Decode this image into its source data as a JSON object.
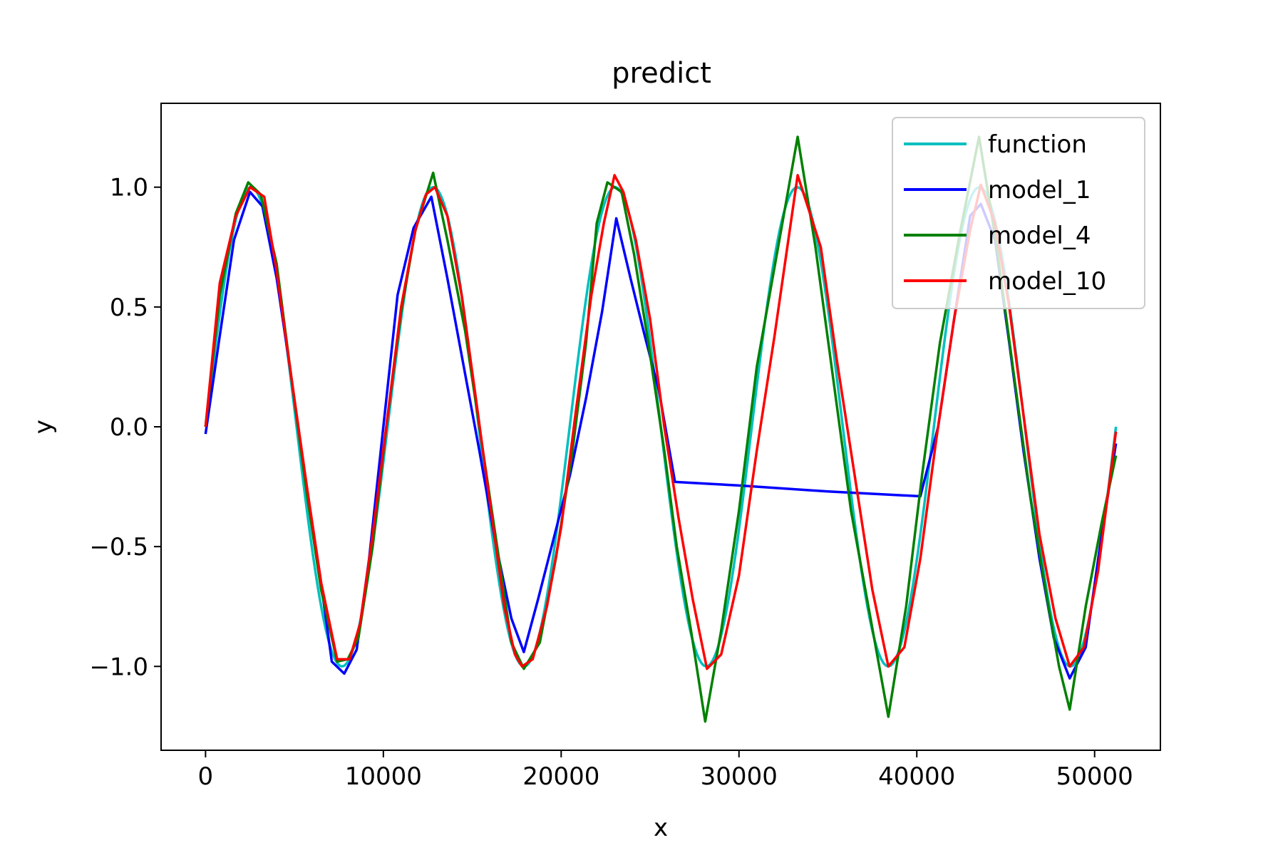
{
  "chart_data": {
    "type": "line",
    "title": "predict",
    "xlabel": "x",
    "ylabel": "y",
    "xlim": [
      -2500,
      53700
    ],
    "ylim": [
      -1.35,
      1.35
    ],
    "xticks": [
      0,
      10000,
      20000,
      30000,
      40000,
      50000
    ],
    "xtick_labels": [
      "0",
      "10000",
      "20000",
      "30000",
      "40000",
      "50000"
    ],
    "yticks": [
      1.0,
      0.5,
      0.0,
      -0.5,
      -1.0
    ],
    "ytick_labels": [
      "1.0",
      "0.5",
      "0.0",
      "−0.5",
      "−1.0"
    ],
    "grid": false,
    "legend_position": "top-right",
    "series": [
      {
        "name": "function",
        "color": "#00bfbf",
        "period": 10240,
        "x_range": [
          0,
          51200
        ],
        "note_type": "sine"
      },
      {
        "name": "model_1",
        "color": "#0000ff",
        "x": [
          0,
          800,
          1600,
          2500,
          3200,
          4000,
          4800,
          5600,
          6400,
          7100,
          7800,
          8500,
          9200,
          10000,
          10800,
          11700,
          12700,
          13600,
          14500,
          15400,
          16300,
          17200,
          17900,
          18700,
          19600,
          20500,
          21400,
          22300,
          23100,
          23900,
          24700,
          25500,
          26400,
          30000,
          35000,
          40200,
          41200,
          42100,
          43000,
          43600,
          44400,
          45200,
          46000,
          46900,
          47700,
          48600,
          49500,
          50300,
          51200
        ],
        "y": [
          -0.03,
          0.38,
          0.78,
          0.98,
          0.92,
          0.62,
          0.22,
          -0.22,
          -0.6,
          -0.98,
          -1.03,
          -0.93,
          -0.55,
          0.0,
          0.55,
          0.83,
          0.96,
          0.62,
          0.26,
          -0.1,
          -0.48,
          -0.8,
          -0.94,
          -0.72,
          -0.46,
          -0.2,
          0.12,
          0.48,
          0.87,
          0.62,
          0.38,
          0.15,
          -0.23,
          -0.245,
          -0.27,
          -0.29,
          0.0,
          0.45,
          0.88,
          0.93,
          0.78,
          0.35,
          -0.1,
          -0.55,
          -0.88,
          -1.05,
          -0.92,
          -0.5,
          -0.07
        ]
      },
      {
        "name": "model_4",
        "color": "#008000",
        "x": [
          0,
          800,
          1700,
          2400,
          3100,
          4000,
          4800,
          5700,
          6500,
          7400,
          8000,
          8600,
          9400,
          10200,
          11000,
          11800,
          12800,
          13600,
          14600,
          15500,
          16400,
          17200,
          17900,
          18800,
          19700,
          20600,
          21400,
          22000,
          22600,
          23400,
          24100,
          24900,
          25800,
          26500,
          27300,
          28100,
          29000,
          30000,
          31000,
          32200,
          33300,
          34300,
          35300,
          36300,
          37400,
          38400,
          39400,
          40300,
          41300,
          42400,
          43500,
          44500,
          45400,
          46400,
          47400,
          48000,
          48600,
          49500,
          50400,
          51200
        ],
        "y": [
          0.0,
          0.55,
          0.89,
          1.02,
          0.97,
          0.68,
          0.22,
          -0.28,
          -0.68,
          -0.98,
          -0.97,
          -0.88,
          -0.5,
          0.02,
          0.48,
          0.82,
          1.06,
          0.78,
          0.4,
          -0.05,
          -0.5,
          -0.9,
          -1.01,
          -0.9,
          -0.55,
          -0.12,
          0.35,
          0.85,
          1.02,
          0.98,
          0.72,
          0.35,
          -0.1,
          -0.5,
          -0.85,
          -1.23,
          -0.85,
          -0.35,
          0.25,
          0.75,
          1.21,
          0.75,
          0.2,
          -0.35,
          -0.8,
          -1.21,
          -0.75,
          -0.2,
          0.35,
          0.8,
          1.21,
          0.75,
          0.25,
          -0.3,
          -0.75,
          -1.0,
          -1.18,
          -0.75,
          -0.4,
          -0.12
        ]
      },
      {
        "name": "model_10",
        "color": "#ff0000",
        "x": [
          0,
          800,
          1700,
          2500,
          3300,
          4000,
          4800,
          5700,
          6500,
          7400,
          8100,
          8700,
          9400,
          10200,
          11000,
          11800,
          12400,
          12900,
          13600,
          14400,
          15200,
          16000,
          16800,
          17400,
          17800,
          18400,
          19200,
          20000,
          20800,
          21700,
          22400,
          23000,
          23500,
          24200,
          25000,
          25800,
          26600,
          27400,
          28200,
          29000,
          30000,
          31000,
          32000,
          33300,
          34600,
          35500,
          36500,
          37500,
          38400,
          39300,
          40200,
          41100,
          42100,
          43000,
          43600,
          44400,
          45200,
          46000,
          46900,
          47800,
          48600,
          49400,
          50200,
          51200
        ],
        "y": [
          0.0,
          0.6,
          0.88,
          1.0,
          0.96,
          0.65,
          0.22,
          -0.25,
          -0.65,
          -0.97,
          -0.97,
          -0.82,
          -0.45,
          0.02,
          0.5,
          0.82,
          0.97,
          1.0,
          0.88,
          0.55,
          0.12,
          -0.32,
          -0.75,
          -0.95,
          -1.0,
          -0.97,
          -0.75,
          -0.42,
          0.05,
          0.55,
          0.85,
          1.05,
          0.98,
          0.78,
          0.45,
          0.0,
          -0.38,
          -0.72,
          -1.01,
          -0.95,
          -0.62,
          -0.1,
          0.38,
          1.05,
          0.75,
          0.28,
          -0.2,
          -0.68,
          -1.0,
          -0.92,
          -0.55,
          -0.05,
          0.45,
          0.82,
          1.01,
          0.85,
          0.5,
          0.05,
          -0.45,
          -0.8,
          -1.0,
          -0.92,
          -0.6,
          -0.02
        ]
      }
    ]
  }
}
